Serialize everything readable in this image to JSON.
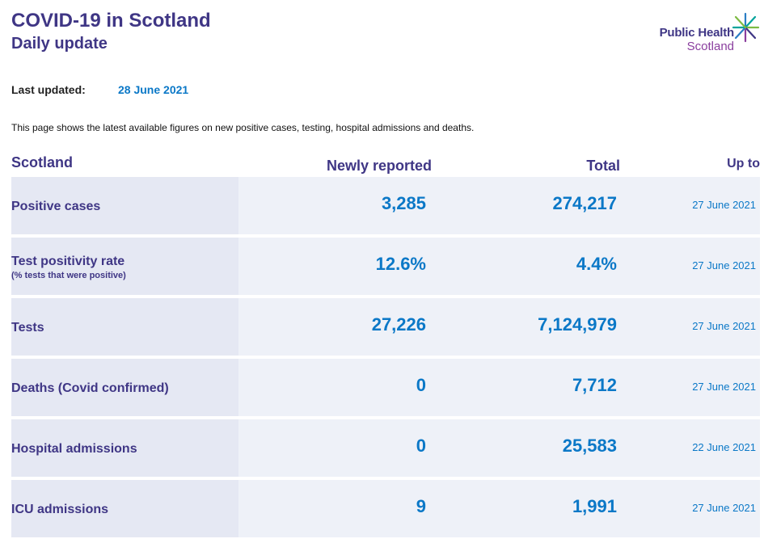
{
  "header": {
    "title": "COVID-19 in Scotland",
    "subtitle": "Daily update",
    "logo_line1": "Public Health",
    "logo_line2": "Scotland"
  },
  "last_updated": {
    "label": "Last updated:",
    "value": "28 June 2021"
  },
  "intro": "This page shows the latest available figures on new positive cases, testing, hospital admissions and deaths.",
  "table": {
    "headers": {
      "area": "Scotland",
      "newly_reported": "Newly reported",
      "total": "Total",
      "up_to": "Up to"
    },
    "rows": [
      {
        "label": "Positive cases",
        "sublabel": "",
        "newly_reported": "3,285",
        "total": "274,217",
        "up_to": "27 June 2021"
      },
      {
        "label": "Test positivity rate",
        "sublabel": "(% tests that were positive)",
        "newly_reported": "12.6%",
        "total": "4.4%",
        "up_to": "27 June 2021"
      },
      {
        "label": "Tests",
        "sublabel": "",
        "newly_reported": "27,226",
        "total": "7,124,979",
        "up_to": "27 June 2021"
      },
      {
        "label": "Deaths (Covid confirmed)",
        "sublabel": "",
        "newly_reported": "0",
        "total": "7,712",
        "up_to": "27 June 2021"
      },
      {
        "label": "Hospital admissions",
        "sublabel": "",
        "newly_reported": "0",
        "total": "25,583",
        "up_to": "22 June 2021"
      },
      {
        "label": "ICU admissions",
        "sublabel": "",
        "newly_reported": "9",
        "total": "1,991",
        "up_to": "27 June 2021"
      }
    ]
  },
  "colors": {
    "heading": "#3f3685",
    "value": "#0b78c7",
    "row_bg": "#eef1f8",
    "label_bg": "#e5e8f3",
    "logo_accent": "#8a3e9e"
  }
}
